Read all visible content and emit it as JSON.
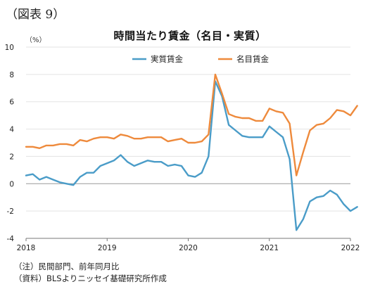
{
  "figure_label": "（図表 9）",
  "notes": [
    "（注）民間部門、前年同月比",
    "（資料）BLSよりニッセイ基礎研究所作成"
  ],
  "chart_data": {
    "type": "line",
    "title": "時間当たり賃金（名目・実質）",
    "unit": "（%）",
    "xlabel": "",
    "ylabel": "",
    "ylim": [
      -4,
      10
    ],
    "yticks": [
      "10",
      "8",
      "6",
      "4",
      "2",
      "0",
      "-2",
      "-4"
    ],
    "ytick_values": [
      10,
      8,
      6,
      4,
      2,
      0,
      -2,
      -4
    ],
    "xticks": [
      "2018",
      "2019",
      "2020",
      "2021",
      "2022"
    ],
    "x_start": "2018-01",
    "x_end": "2022-01",
    "grid": true,
    "legend_position": "top-center",
    "series": [
      {
        "name": "実質賃金",
        "color": "#4a9cc8",
        "values": [
          0.6,
          0.7,
          0.3,
          0.5,
          0.3,
          0.1,
          0.0,
          -0.1,
          0.5,
          0.8,
          0.8,
          1.3,
          1.5,
          1.7,
          2.1,
          1.6,
          1.3,
          1.5,
          1.7,
          1.6,
          1.6,
          1.3,
          1.4,
          1.3,
          0.6,
          0.5,
          0.8,
          2.0,
          7.5,
          6.4,
          4.3,
          3.9,
          3.5,
          3.4,
          3.4,
          3.4,
          4.2,
          3.8,
          3.4,
          1.8,
          -3.4,
          -2.6,
          -1.3,
          -1.0,
          -0.9,
          -0.5,
          -0.8,
          -1.5,
          -2.0,
          -1.7
        ]
      },
      {
        "name": "名目賃金",
        "color": "#ee8a3c",
        "values": [
          2.7,
          2.7,
          2.6,
          2.8,
          2.8,
          2.9,
          2.9,
          2.8,
          3.2,
          3.1,
          3.3,
          3.4,
          3.4,
          3.3,
          3.6,
          3.5,
          3.3,
          3.3,
          3.4,
          3.4,
          3.4,
          3.1,
          3.2,
          3.3,
          3.0,
          3.0,
          3.1,
          3.6,
          8.0,
          6.6,
          5.1,
          4.9,
          4.8,
          4.8,
          4.6,
          4.6,
          5.5,
          5.3,
          5.2,
          4.4,
          0.6,
          2.3,
          3.9,
          4.3,
          4.4,
          4.8,
          5.4,
          5.3,
          5.0,
          5.7
        ]
      }
    ]
  }
}
